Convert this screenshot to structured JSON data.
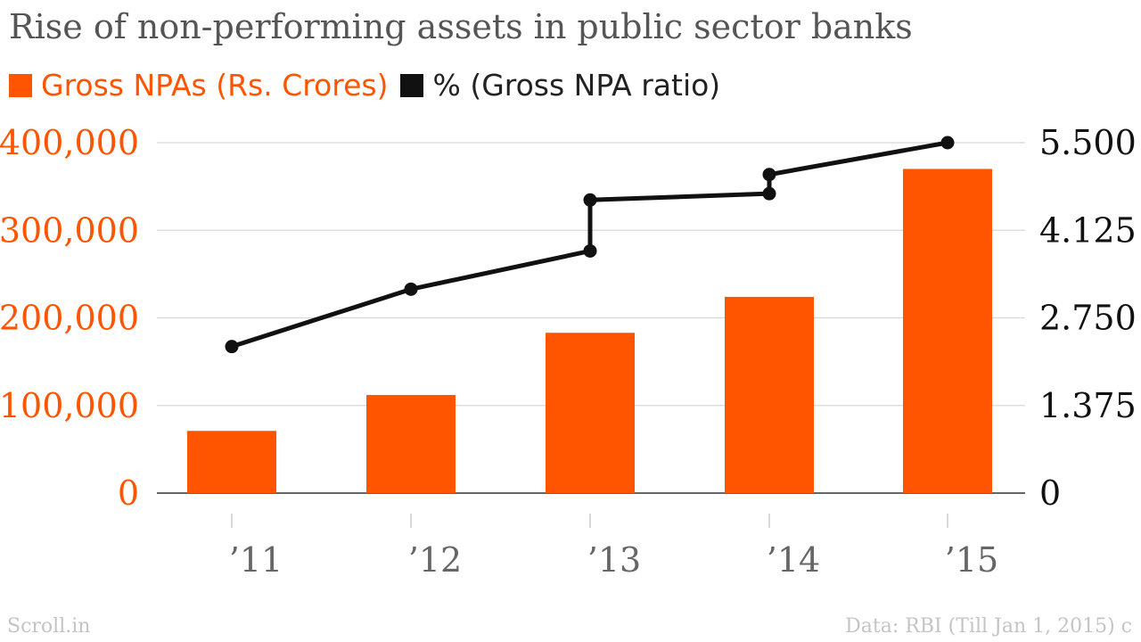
{
  "title": "Rise of non-performing assets in public sector banks",
  "legend": [
    {
      "label": "Gross NPAs (Rs. Crores)",
      "color": "#ff5500"
    },
    {
      "label": "% (Gross NPA ratio)",
      "color": "#111111"
    }
  ],
  "footer": {
    "left": "Scroll.in",
    "right": "Data: RBI (Till Jan 1, 2015) c"
  },
  "chart_data": {
    "type": "bar",
    "categories": [
      "’11",
      "’12",
      "’13",
      "’14",
      "’15"
    ],
    "series": [
      {
        "name": "Gross NPAs (Rs. Crores)",
        "type": "bar",
        "axis": "left",
        "color": "#ff5500",
        "values": [
          71000,
          112000,
          183000,
          224000,
          370000
        ]
      },
      {
        "name": "% (Gross NPA ratio)",
        "type": "line",
        "axis": "right",
        "color": "#111111",
        "points": [
          {
            "category_index": 0,
            "value": 2.3
          },
          {
            "category_index": 1,
            "value": 3.2
          },
          {
            "category_index": 2,
            "value": 3.8
          },
          {
            "category_index": 2,
            "value": 4.6
          },
          {
            "category_index": 3,
            "value": 4.7
          },
          {
            "category_index": 3,
            "value": 5.0
          },
          {
            "category_index": 4,
            "value": 5.5
          }
        ]
      }
    ],
    "y_left": {
      "ticks": [
        "400,000",
        "300,000",
        "200,000",
        "100,000",
        "0"
      ],
      "tick_values": [
        400000,
        300000,
        200000,
        100000,
        0
      ],
      "ylim": [
        0,
        400000
      ],
      "color": "#ff5500"
    },
    "y_right": {
      "ticks": [
        "5.500",
        "4.125",
        "2.750",
        "1.375",
        "0"
      ],
      "tick_values": [
        5.5,
        4.125,
        2.75,
        1.375,
        0
      ],
      "ylim": [
        0,
        5.5
      ],
      "color": "#111111"
    },
    "grid": true,
    "legend_position": "top-left"
  }
}
